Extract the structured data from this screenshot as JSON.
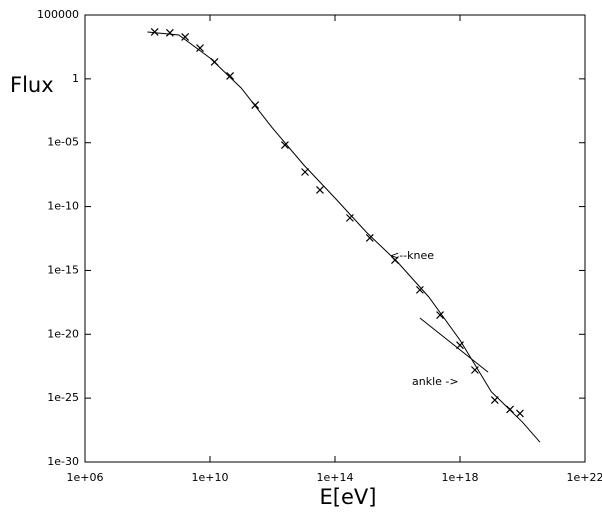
{
  "chart_data": {
    "type": "scatter",
    "x_label": "E[eV]",
    "y_label": "Flux",
    "xscale": "log",
    "yscale": "log",
    "xlim": [
      1000000.0,
      1e+22
    ],
    "ylim": [
      1e-30,
      100000
    ],
    "xticks": [
      {
        "value": 1000000.0,
        "label": "1e+06"
      },
      {
        "value": 10000000000.0,
        "label": "1e+10"
      },
      {
        "value": 100000000000000.0,
        "label": "1e+14"
      },
      {
        "value": 1e+18,
        "label": "1e+18"
      },
      {
        "value": 1e+22,
        "label": "1e+22"
      }
    ],
    "yticks": [
      100000,
      1,
      {
        "value": 1e-05,
        "label": "1e-05"
      },
      {
        "value": 1e-10,
        "label": "1e-10"
      },
      {
        "value": 1e-15,
        "label": "1e-15"
      },
      {
        "value": 1e-20,
        "label": "1e-20"
      },
      {
        "value": 1e-25,
        "label": "1e-25"
      },
      {
        "value": 1e-30,
        "label": "1e-30"
      }
    ],
    "series": [
      {
        "marker": "x",
        "color": "#000000",
        "x": [
          170000000.0,
          520000000.0,
          1600000000.0,
          4800000000.0,
          14000000000.0,
          44000000000.0,
          280000000000.0,
          2500000000000.0,
          11000000000000.0,
          33000000000000.0,
          300000000000000.0,
          1300000000000000.0,
          8300000000000000.0,
          5.2e+16,
          2.3e+17,
          1e+18,
          3e+18,
          1.3e+19,
          4e+19,
          8.3e+19
        ],
        "values": [
          4700,
          4000,
          1900,
          260,
          21,
          1.7,
          0.0089,
          6.6e-06,
          5.1e-08,
          2e-09,
          1.3e-11,
          3.5e-13,
          6.5e-15,
          3e-17,
          3.2e-19,
          1.4e-21,
          1.6e-23,
          7.1e-26,
          1.3e-26,
          6.3e-27
        ]
      },
      {
        "marker": "none",
        "color": "#000000",
        "x": [
          100000000.0,
          1000000000.0,
          10000000000.0,
          100000000000.0,
          1000000000000.0,
          10000000000000.0,
          100000000000000.0,
          1000000000000000.0,
          1e+16,
          1e+17,
          1e+18,
          1e+19,
          1e+20,
          3.6e+20
        ],
        "values": [
          4700,
          2700,
          43,
          0.19,
          0.00014,
          1.8e-07,
          4.7e-10,
          1e-12,
          4.6e-15,
          8.3e-18,
          3.5e-21,
          3.2e-25,
          1.3e-27,
          3.6e-29
        ]
      },
      {
        "marker": "none",
        "color": "#000000",
        "x": [
          5.2e+16,
          7.9e+18
        ],
        "values": [
          1.9e-19,
          1.1e-23
        ]
      }
    ],
    "annotations": [
      "<--knee",
      "ankle ->"
    ]
  }
}
